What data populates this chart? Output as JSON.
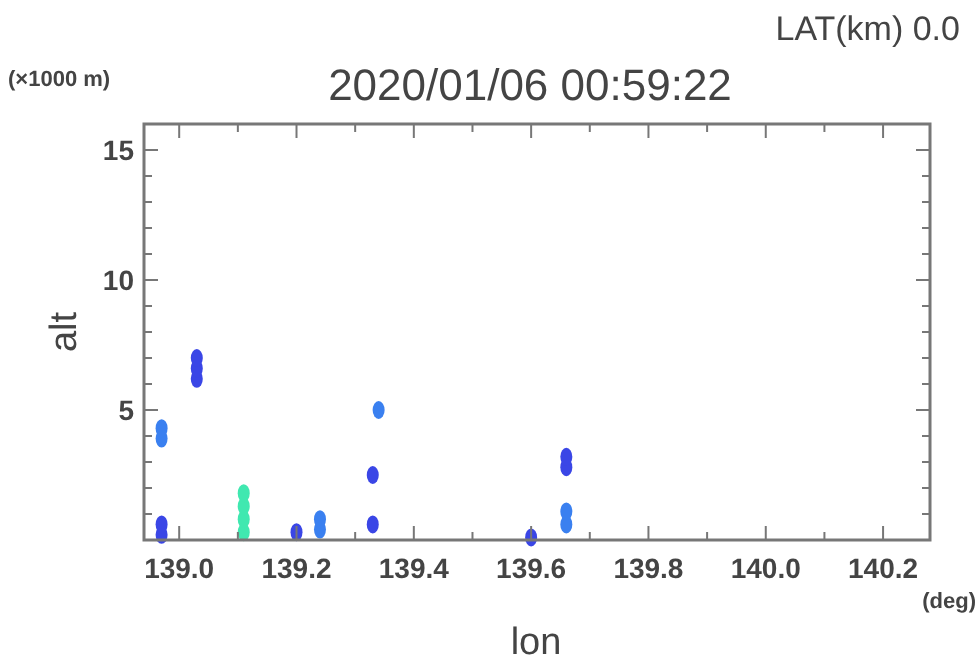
{
  "chart_data": {
    "type": "scatter",
    "title": "2020/01/06 00:59:22",
    "subtitle": "LAT(km) 0.0",
    "xlabel": "lon",
    "ylabel": "alt",
    "annotations": [
      "(×1000 m)",
      "(deg)"
    ],
    "marker": "circle",
    "grid": false,
    "xlim": [
      138.94,
      140.28
    ],
    "ylim": [
      0,
      16
    ],
    "xticks": [
      {
        "value": 139.0,
        "label": "139.0"
      },
      {
        "value": 139.1,
        "label": null
      },
      {
        "value": 139.2,
        "label": "139.2"
      },
      {
        "value": 139.3,
        "label": null
      },
      {
        "value": 139.4,
        "label": "139.4"
      },
      {
        "value": 139.5,
        "label": null
      },
      {
        "value": 139.6,
        "label": "139.6"
      },
      {
        "value": 139.7,
        "label": null
      },
      {
        "value": 139.8,
        "label": "139.8"
      },
      {
        "value": 139.9,
        "label": null
      },
      {
        "value": 140.0,
        "label": "140.0"
      },
      {
        "value": 140.1,
        "label": null
      },
      {
        "value": 140.2,
        "label": "140.2"
      }
    ],
    "yticks": [
      {
        "value": 1,
        "label": null
      },
      {
        "value": 2,
        "label": null
      },
      {
        "value": 3,
        "label": null
      },
      {
        "value": 4,
        "label": null
      },
      5,
      {
        "value": 6,
        "label": null
      },
      {
        "value": 7,
        "label": null
      },
      {
        "value": 8,
        "label": null
      },
      {
        "value": 9,
        "label": null
      },
      10,
      {
        "value": 11,
        "label": null
      },
      {
        "value": 12,
        "label": null
      },
      {
        "value": 13,
        "label": null
      },
      {
        "value": 14,
        "label": null
      },
      15
    ],
    "series": [
      {
        "color": "#3a46e6",
        "x": [
          139.03,
          139.03,
          139.03,
          138.97,
          138.97,
          139.2,
          139.33,
          139.33,
          139.66,
          139.66,
          139.6
        ],
        "values": [
          6.2,
          6.6,
          7.0,
          0.2,
          0.6,
          0.3,
          2.5,
          0.6,
          2.8,
          3.2,
          0.1
        ]
      },
      {
        "color": "#3a80f0",
        "x": [
          138.97,
          138.97,
          139.24,
          139.24,
          139.66,
          139.66,
          139.34
        ],
        "values": [
          3.9,
          4.3,
          0.4,
          0.8,
          0.6,
          1.1,
          5.0
        ]
      },
      {
        "color": "#40e8b0",
        "x": [
          139.11,
          139.11,
          139.11,
          139.11
        ],
        "values": [
          0.3,
          0.8,
          1.3,
          1.8
        ]
      }
    ]
  }
}
